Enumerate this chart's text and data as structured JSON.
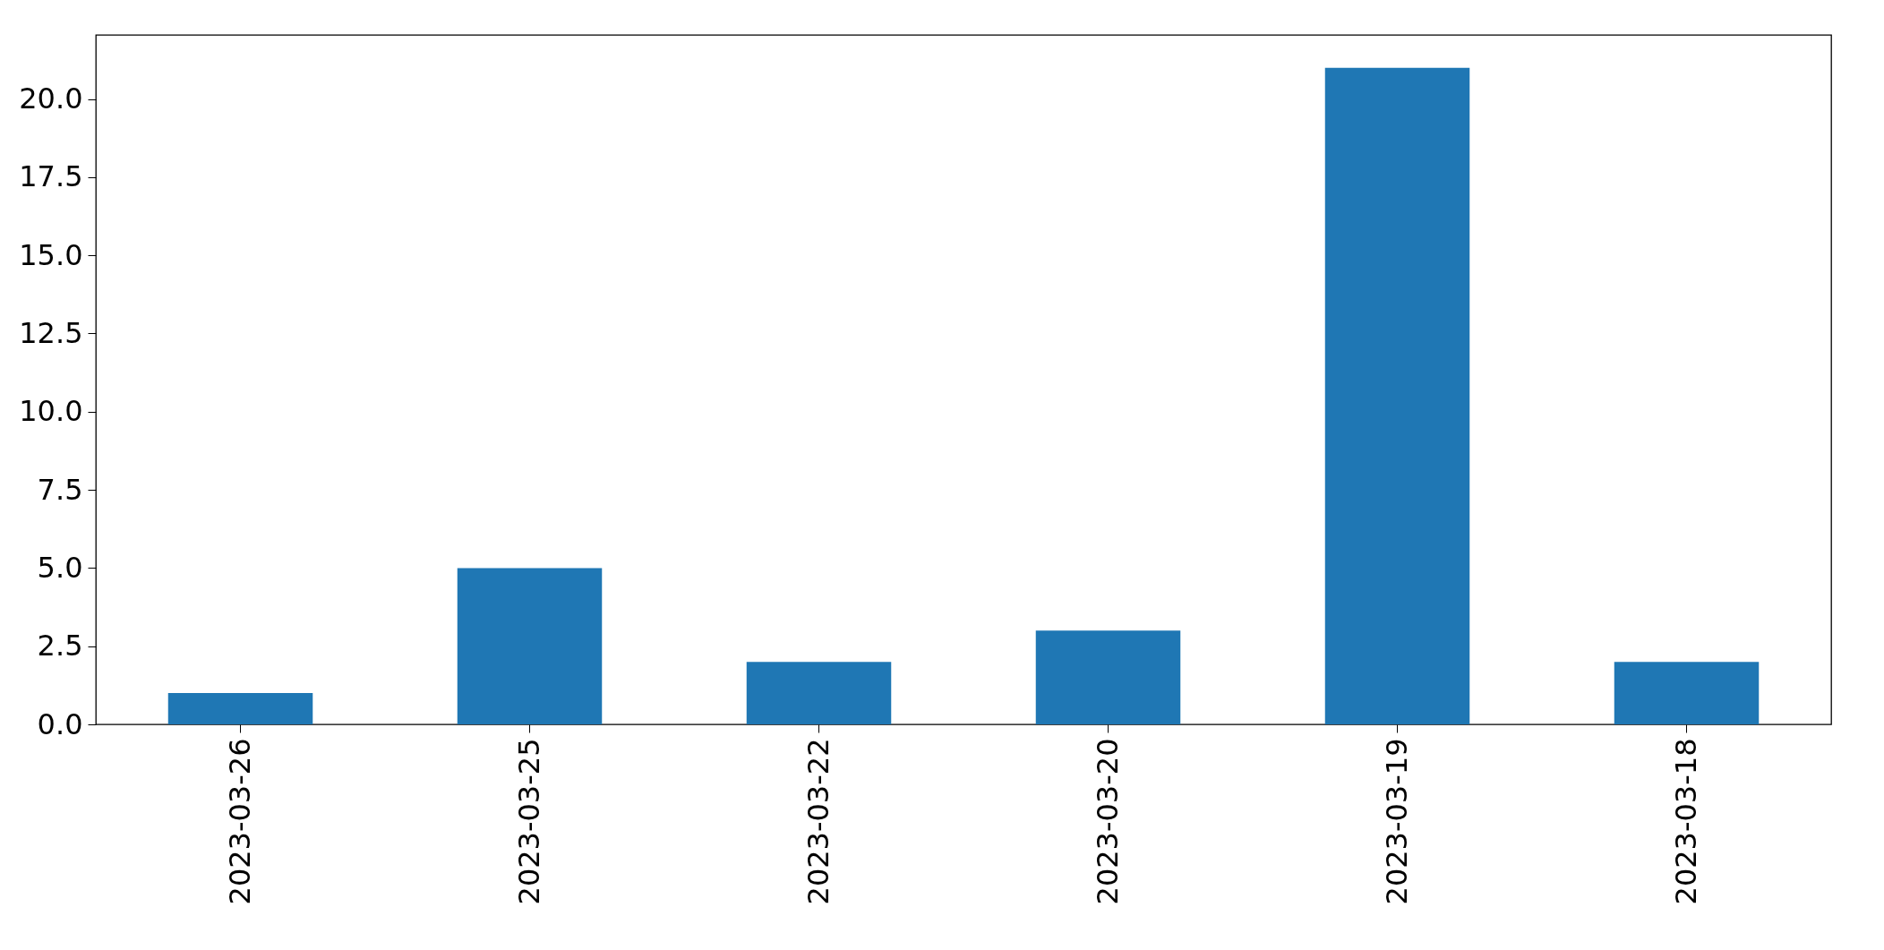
{
  "chart_data": {
    "type": "bar",
    "categories": [
      "2023-03-26",
      "2023-03-25",
      "2023-03-22",
      "2023-03-20",
      "2023-03-19",
      "2023-03-18"
    ],
    "values": [
      1,
      5,
      2,
      3,
      21,
      2
    ],
    "color": "#1f77b4",
    "ylim": [
      0,
      22.05
    ],
    "yticks": [
      {
        "value": 0,
        "label": "0.0"
      },
      {
        "value": 2.5,
        "label": "2.5"
      },
      {
        "value": 5,
        "label": "5.0"
      },
      {
        "value": 7.5,
        "label": "7.5"
      },
      {
        "value": 10,
        "label": "10.0"
      },
      {
        "value": 12.5,
        "label": "12.5"
      },
      {
        "value": 15,
        "label": "15.0"
      },
      {
        "value": 17.5,
        "label": "17.5"
      },
      {
        "value": 20,
        "label": "20.0"
      }
    ],
    "grid": false
  }
}
